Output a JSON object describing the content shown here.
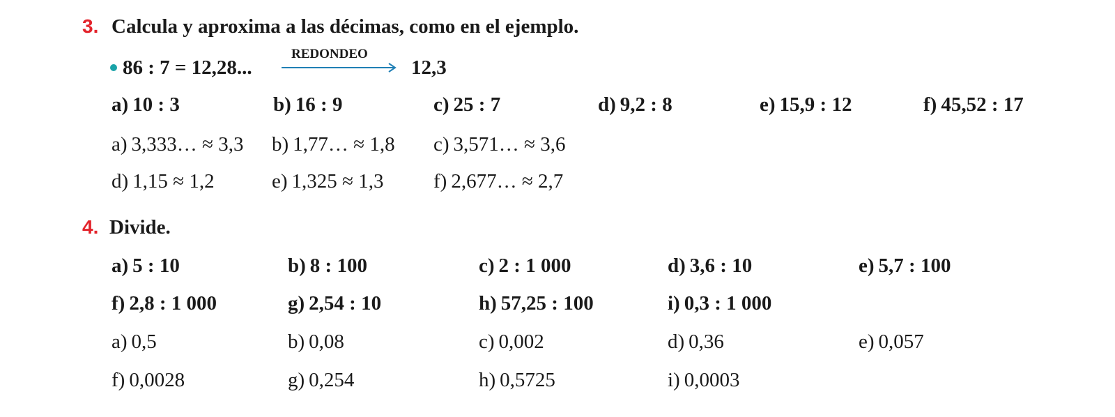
{
  "exercises": [
    {
      "number": "3.",
      "title": "Calcula y aproxima a las décimas, como en el ejemplo.",
      "example": {
        "expression": "86 : 7 = 12,28...",
        "arrow_label": "REDONDEO",
        "result": "12,3"
      },
      "items": [
        {
          "letter": "a)",
          "text": "10 : 3"
        },
        {
          "letter": "b)",
          "text": "16 : 9"
        },
        {
          "letter": "c)",
          "text": "25 : 7"
        },
        {
          "letter": "d)",
          "text": "9,2 : 8"
        },
        {
          "letter": "e)",
          "text": "15,9 : 12"
        },
        {
          "letter": "f)",
          "text": "45,52 : 17"
        }
      ],
      "answers": [
        {
          "letter": "a)",
          "text": "3,333… ≈ 3,3"
        },
        {
          "letter": "b)",
          "text": "1,77… ≈ 1,8"
        },
        {
          "letter": "c)",
          "text": "3,571… ≈ 3,6"
        },
        {
          "letter": "d)",
          "text": "1,15 ≈ 1,2"
        },
        {
          "letter": "e)",
          "text": "1,325 ≈ 1,3"
        },
        {
          "letter": "f)",
          "text": "2,677… ≈ 2,7"
        }
      ]
    },
    {
      "number": "4.",
      "title": "Divide.",
      "items": [
        {
          "letter": "a)",
          "text": "5 : 10"
        },
        {
          "letter": "b)",
          "text": "8 : 100"
        },
        {
          "letter": "c)",
          "text": "2 : 1 000"
        },
        {
          "letter": "d)",
          "text": "3,6 : 10"
        },
        {
          "letter": "e)",
          "text": "5,7 : 100"
        },
        {
          "letter": "f)",
          "text": "2,8 : 1 000"
        },
        {
          "letter": "g)",
          "text": "2,54 : 10"
        },
        {
          "letter": "h)",
          "text": "57,25 : 100"
        },
        {
          "letter": "i)",
          "text": "0,3 : 1 000"
        }
      ],
      "answers": [
        {
          "letter": "a)",
          "text": "0,5"
        },
        {
          "letter": "b)",
          "text": "0,08"
        },
        {
          "letter": "c)",
          "text": "0,002"
        },
        {
          "letter": "d)",
          "text": "0,36"
        },
        {
          "letter": "e)",
          "text": "0,057"
        },
        {
          "letter": "f)",
          "text": "0,0028"
        },
        {
          "letter": "g)",
          "text": "0,254"
        },
        {
          "letter": "h)",
          "text": "0,5725"
        },
        {
          "letter": "i)",
          "text": "0,0003"
        }
      ]
    }
  ]
}
